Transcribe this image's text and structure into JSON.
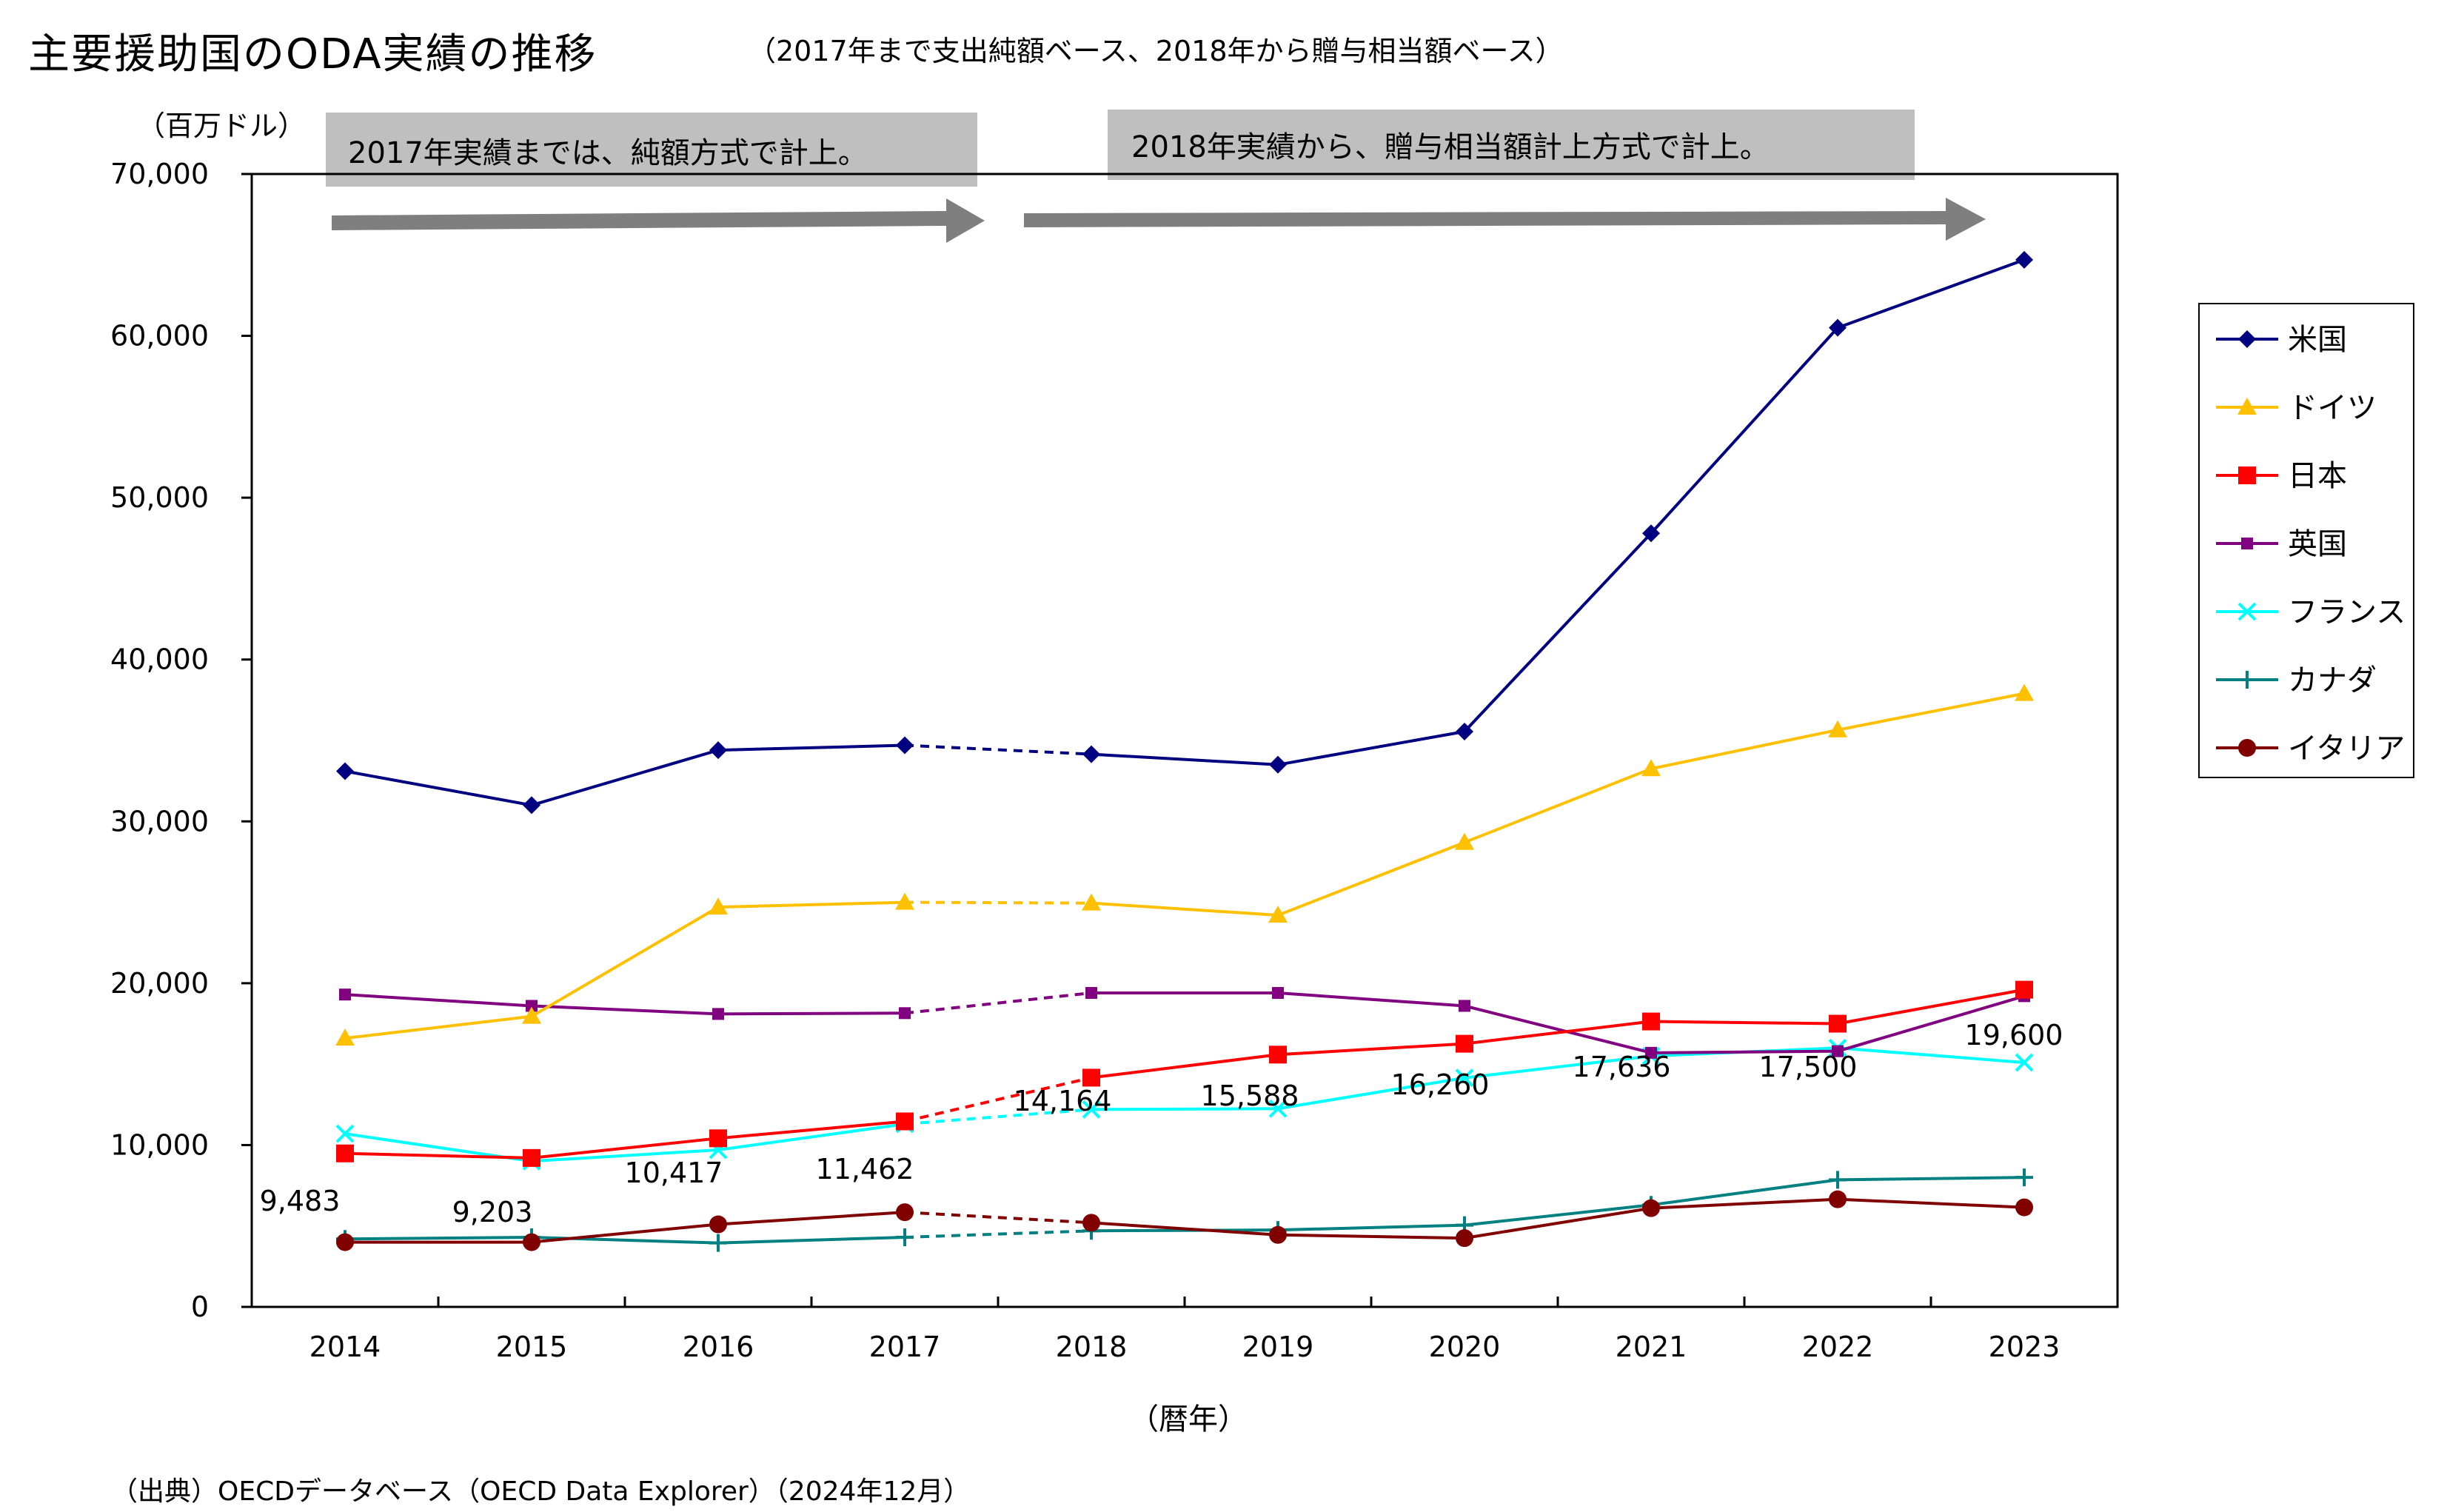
{
  "title": "主要援助国のODA実績の推移",
  "subtitle": "（2017年まで支出純額ベース、2018年から贈与相当額ベース）",
  "source": "（出典）OECDデータベース（OECD Data Explorer）（2024年12月）",
  "banners": {
    "left": "2017年実績までは、純額方式で計上。",
    "right": "2018年実績から、贈与相当額計上方式で計上。"
  },
  "chart_data": {
    "type": "line",
    "title": "主要援助国のODA実績の推移",
    "ylabel": "（百万ドル）",
    "xlabel": "（暦年）",
    "ylim": [
      0,
      70000
    ],
    "yticks": [
      0,
      10000,
      20000,
      30000,
      40000,
      50000,
      60000,
      70000
    ],
    "ytick_labels": [
      "0",
      "10,000",
      "20,000",
      "30,000",
      "40,000",
      "50,000",
      "60,000",
      "70,000"
    ],
    "x": [
      "2014",
      "2015",
      "2016",
      "2017",
      "2018",
      "2019",
      "2020",
      "2021",
      "2022",
      "2023"
    ],
    "grid": false,
    "legend_position": "right",
    "method_break": "dashed segment between 2017 and 2018",
    "series": [
      {
        "name": "米国",
        "color": "#000080",
        "marker": "diamond",
        "values": [
          33100,
          31000,
          34400,
          34700,
          34150,
          33500,
          35550,
          47800,
          60500,
          64700
        ]
      },
      {
        "name": "ドイツ",
        "color": "#FFC000",
        "marker": "triangle",
        "values": [
          16600,
          17950,
          24700,
          25000,
          24950,
          24200,
          28700,
          33250,
          35650,
          37900
        ]
      },
      {
        "name": "日本",
        "color": "#FF0000",
        "marker": "square",
        "values": [
          9483,
          9203,
          10417,
          11462,
          14164,
          15588,
          16260,
          17636,
          17500,
          19600
        ],
        "data_labels": [
          "9,483",
          "9,203",
          "10,417",
          "11,462",
          "14,164",
          "15,588",
          "16,260",
          "17,636",
          "17,500",
          "19,600"
        ]
      },
      {
        "name": "英国",
        "color": "#800080",
        "marker": "small-square",
        "values": [
          19300,
          18600,
          18100,
          18150,
          19400,
          19400,
          18600,
          15700,
          15800,
          19200
        ]
      },
      {
        "name": "フランス",
        "color": "#00FFFF",
        "marker": "x",
        "values": [
          10700,
          9000,
          9700,
          11300,
          12200,
          12250,
          14150,
          15500,
          16000,
          15100
        ]
      },
      {
        "name": "カナダ",
        "color": "#008080",
        "marker": "plus",
        "values": [
          4200,
          4300,
          3950,
          4300,
          4700,
          4750,
          5050,
          6300,
          7850,
          8000
        ]
      },
      {
        "name": "イタリア",
        "color": "#800000",
        "marker": "circle",
        "values": [
          4000,
          4000,
          5100,
          5850,
          5200,
          4450,
          4250,
          6100,
          6650,
          6150
        ]
      }
    ]
  }
}
